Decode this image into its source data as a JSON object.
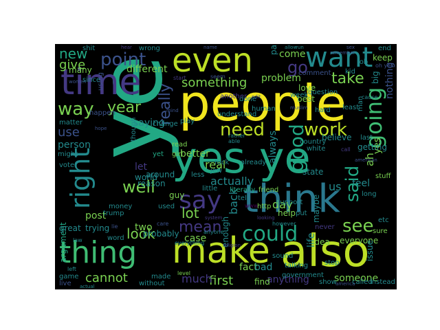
{
  "palette": {
    "yellow": "#f0e51e",
    "yellow_green": "#bddf26",
    "green": "#7ad151",
    "green_teal": "#3fbc73",
    "teal": "#22a884",
    "teal_dark": "#1f9a8a",
    "blue_teal": "#238a8d",
    "blue": "#2a788e",
    "blue_dark": "#31688e",
    "indigo": "#3b528b",
    "violet": "#443983",
    "purple": "#482576",
    "deep_purple": "#440154"
  },
  "words": [
    {
      "text": "ye",
      "color": "teal"
    },
    {
      "text": "people",
      "color": "yellow"
    },
    {
      "text": "yes ye",
      "color": "teal"
    },
    {
      "text": "think",
      "color": "blue"
    },
    {
      "text": "also",
      "color": "yellow_green"
    },
    {
      "text": "make",
      "color": "yellow_green"
    },
    {
      "text": "thing",
      "color": "green_teal"
    },
    {
      "text": "even",
      "color": "yellow_green"
    },
    {
      "text": "time",
      "color": "violet"
    },
    {
      "text": "want",
      "color": "blue_teal"
    },
    {
      "text": "right",
      "color": "blue_teal"
    },
    {
      "text": "say",
      "color": "violet"
    },
    {
      "text": "point",
      "color": "indigo"
    },
    {
      "text": "going",
      "color": "green_teal"
    },
    {
      "text": "could",
      "color": "teal"
    },
    {
      "text": "way",
      "color": "green"
    },
    {
      "text": "year",
      "color": "green"
    },
    {
      "text": "need",
      "color": "yellow_green"
    },
    {
      "text": "work",
      "color": "yellow_green"
    },
    {
      "text": "good",
      "color": "teal"
    },
    {
      "text": "well",
      "color": "green"
    },
    {
      "text": "said",
      "color": "teal"
    },
    {
      "text": "really",
      "color": "indigo"
    },
    {
      "text": "see",
      "color": "green"
    },
    {
      "text": "take",
      "color": "green"
    },
    {
      "text": "new",
      "color": "teal"
    },
    {
      "text": "go",
      "color": "violet"
    },
    {
      "text": "something",
      "color": "green"
    },
    {
      "text": "look",
      "color": "green"
    },
    {
      "text": "mean",
      "color": "violet"
    },
    {
      "text": "cannot",
      "color": "green"
    },
    {
      "text": "actually",
      "color": "blue_teal"
    },
    {
      "text": "lot",
      "color": "green"
    },
    {
      "text": "first",
      "color": "green"
    },
    {
      "text": "much",
      "color": "violet"
    },
    {
      "text": "different",
      "color": "green"
    },
    {
      "text": "give",
      "color": "green"
    },
    {
      "text": "use",
      "color": "indigo"
    },
    {
      "text": "saying",
      "color": "blue_teal"
    },
    {
      "text": "real",
      "color": "green"
    },
    {
      "text": "better",
      "color": "green"
    },
    {
      "text": "day",
      "color": "green"
    },
    {
      "text": "person",
      "color": "blue_teal"
    },
    {
      "text": "two",
      "color": "green"
    },
    {
      "text": "post",
      "color": "green"
    },
    {
      "text": "case",
      "color": "green"
    },
    {
      "text": "back",
      "color": "blue_teal"
    },
    {
      "text": "feel",
      "color": "blue_teal"
    },
    {
      "text": "us",
      "color": "blue_teal"
    },
    {
      "text": "problem",
      "color": "green"
    },
    {
      "text": "come",
      "color": "green"
    },
    {
      "text": "part",
      "color": "blue_teal"
    },
    {
      "text": "yes",
      "color": "green"
    },
    {
      "text": "ah",
      "color": "green"
    },
    {
      "text": "nothing",
      "color": "indigo"
    },
    {
      "text": "always",
      "color": "blue_teal"
    },
    {
      "text": "life",
      "color": "blue_teal"
    },
    {
      "text": "anything",
      "color": "violet"
    },
    {
      "text": "someone",
      "color": "green"
    },
    {
      "text": "everyone",
      "color": "green"
    },
    {
      "text": "issue",
      "color": "blue_teal"
    },
    {
      "text": "fact",
      "color": "green"
    },
    {
      "text": "bad",
      "color": "blue_teal"
    },
    {
      "text": "let",
      "color": "violet"
    },
    {
      "text": "guy",
      "color": "green"
    },
    {
      "text": "world",
      "color": "blue_teal"
    },
    {
      "text": "around",
      "color": "blue_teal"
    },
    {
      "text": "reason",
      "color": "blue_teal"
    },
    {
      "text": "trying",
      "color": "blue_teal"
    },
    {
      "text": "argument",
      "color": "teal"
    },
    {
      "text": "money",
      "color": "blue_teal"
    },
    {
      "text": "great",
      "color": "blue_teal"
    },
    {
      "text": "word",
      "color": "blue_teal"
    },
    {
      "text": "probably",
      "color": "blue_teal"
    },
    {
      "text": "made",
      "color": "blue_teal"
    },
    {
      "text": "without",
      "color": "blue_teal"
    },
    {
      "text": "live",
      "color": "indigo"
    },
    {
      "text": "game",
      "color": "blue_teal"
    },
    {
      "text": "find",
      "color": "green"
    },
    {
      "text": "show",
      "color": "blue_teal"
    },
    {
      "text": "stop",
      "color": "blue_teal"
    },
    {
      "text": "called",
      "color": "blue_teal"
    },
    {
      "text": "instead",
      "color": "blue_teal"
    },
    {
      "text": "long",
      "color": "blue_teal"
    },
    {
      "text": "white",
      "color": "blue_teal"
    },
    {
      "text": "maybe",
      "color": "blue_teal"
    },
    {
      "text": "idea",
      "color": "green"
    },
    {
      "text": "state",
      "color": "blue_teal"
    },
    {
      "text": "getting",
      "color": "blue_teal"
    },
    {
      "text": "country",
      "color": "blue_teal"
    },
    {
      "text": "believe",
      "color": "blue_teal"
    },
    {
      "text": "last",
      "color": "blue_teal"
    },
    {
      "text": "least",
      "color": "blue_teal"
    },
    {
      "text": "big",
      "color": "blue_teal"
    },
    {
      "text": "keep",
      "color": "green"
    },
    {
      "text": "end",
      "color": "blue_teal"
    },
    {
      "text": "best",
      "color": "green"
    },
    {
      "text": "question",
      "color": "blue_teal"
    },
    {
      "text": "love",
      "color": "green"
    },
    {
      "text": "hard",
      "color": "blue_teal"
    },
    {
      "text": "shit",
      "color": "blue_teal"
    },
    {
      "text": "many",
      "color": "green"
    },
    {
      "text": "since",
      "color": "blue_teal"
    },
    {
      "text": "matter",
      "color": "blue_teal"
    },
    {
      "text": "might",
      "color": "blue_teal"
    },
    {
      "text": "though",
      "color": "blue_teal"
    },
    {
      "text": "change",
      "color": "blue_teal"
    },
    {
      "text": "read",
      "color": "green"
    },
    {
      "text": "girl",
      "color": "green"
    },
    {
      "text": "play",
      "color": "blue_teal"
    },
    {
      "text": "less",
      "color": "blue_teal"
    },
    {
      "text": "fuck",
      "color": "blue_teal"
    },
    {
      "text": "already",
      "color": "blue_teal"
    },
    {
      "text": "stuff",
      "color": "green"
    },
    {
      "text": "help",
      "color": "green"
    },
    {
      "text": "tell",
      "color": "blue_teal"
    },
    {
      "text": "little",
      "color": "blue_teal"
    },
    {
      "text": "literally",
      "color": "teal"
    },
    {
      "text": "friend",
      "color": "green"
    },
    {
      "text": "understand",
      "color": "blue_teal"
    },
    {
      "text": "human",
      "color": "blue_teal"
    },
    {
      "text": "week",
      "color": "blue_teal"
    },
    {
      "text": "vote",
      "color": "blue_teal"
    },
    {
      "text": "used",
      "color": "blue_teal"
    },
    {
      "text": "trump",
      "color": "blue_teal"
    },
    {
      "text": "support",
      "color": "blue_teal"
    },
    {
      "text": "talking",
      "color": "blue_teal"
    },
    {
      "text": "government",
      "color": "blue_teal"
    },
    {
      "text": "never",
      "color": "violet"
    },
    {
      "text": "enough",
      "color": "blue_teal"
    },
    {
      "text": "sound",
      "color": "blue_teal"
    },
    {
      "text": "level",
      "color": "green"
    },
    {
      "text": "everything",
      "color": "blue_teal"
    },
    {
      "text": "wrong",
      "color": "blue_teal"
    },
    {
      "text": "done",
      "color": "blue_teal"
    },
    {
      "text": "another",
      "color": "violet"
    },
    {
      "text": "happen",
      "color": "indigo"
    },
    {
      "text": "using",
      "color": "indigo"
    },
    {
      "text": "yet",
      "color": "teal"
    },
    {
      "text": "comment",
      "color": "indigo"
    },
    {
      "text": "kid",
      "color": "blue_teal"
    },
    {
      "text": "job",
      "color": "blue_teal"
    },
    {
      "text": "man",
      "color": "blue_teal"
    },
    {
      "text": "sure",
      "color": "green"
    },
    {
      "text": "etc",
      "color": "blue_teal"
    },
    {
      "text": "put",
      "color": "blue_teal"
    },
    {
      "text": "however",
      "color": "blue_teal"
    },
    {
      "text": "cause",
      "color": "blue_teal"
    },
    {
      "text": "oh yes",
      "color": "indigo"
    },
    {
      "text": "call",
      "color": "violet"
    },
    {
      "text": "able",
      "color": "blue_teal"
    },
    {
      "text": "rather",
      "color": "blue_teal"
    },
    {
      "text": "care",
      "color": "indigo"
    },
    {
      "text": "law",
      "color": "blue_teal"
    },
    {
      "text": "lie",
      "color": "indigo"
    },
    {
      "text": "start",
      "color": "violet"
    },
    {
      "text": "seem",
      "color": "indigo"
    },
    {
      "text": "anyone",
      "color": "blue_teal"
    },
    {
      "text": "left",
      "color": "blue_teal"
    },
    {
      "text": "actual",
      "color": "blue_teal"
    },
    {
      "text": "america",
      "color": "indigo"
    },
    {
      "text": "edit",
      "color": "indigo"
    },
    {
      "text": "muslim",
      "color": "indigo"
    },
    {
      "text": "hope",
      "color": "indigo"
    },
    {
      "text": "system",
      "color": "violet"
    },
    {
      "text": "religion",
      "color": "violet"
    },
    {
      "text": "looking",
      "color": "violet"
    },
    {
      "text": "american",
      "color": "indigo"
    },
    {
      "text": "jew",
      "color": "blue_teal"
    },
    {
      "text": "www",
      "color": "deep_purple"
    },
    {
      "text": "http",
      "color": "green"
    },
    {
      "text": "name",
      "color": "indigo"
    },
    {
      "text": "run",
      "color": "blue_teal"
    },
    {
      "text": "remember",
      "color": "indigo"
    },
    {
      "text": "hear",
      "color": "violet"
    },
    {
      "text": "allow",
      "color": "blue_teal"
    },
    {
      "text": "sex",
      "color": "indigo"
    },
    {
      "text": "women",
      "color": "indigo"
    },
    {
      "text": "mind",
      "color": "indigo"
    }
  ]
}
